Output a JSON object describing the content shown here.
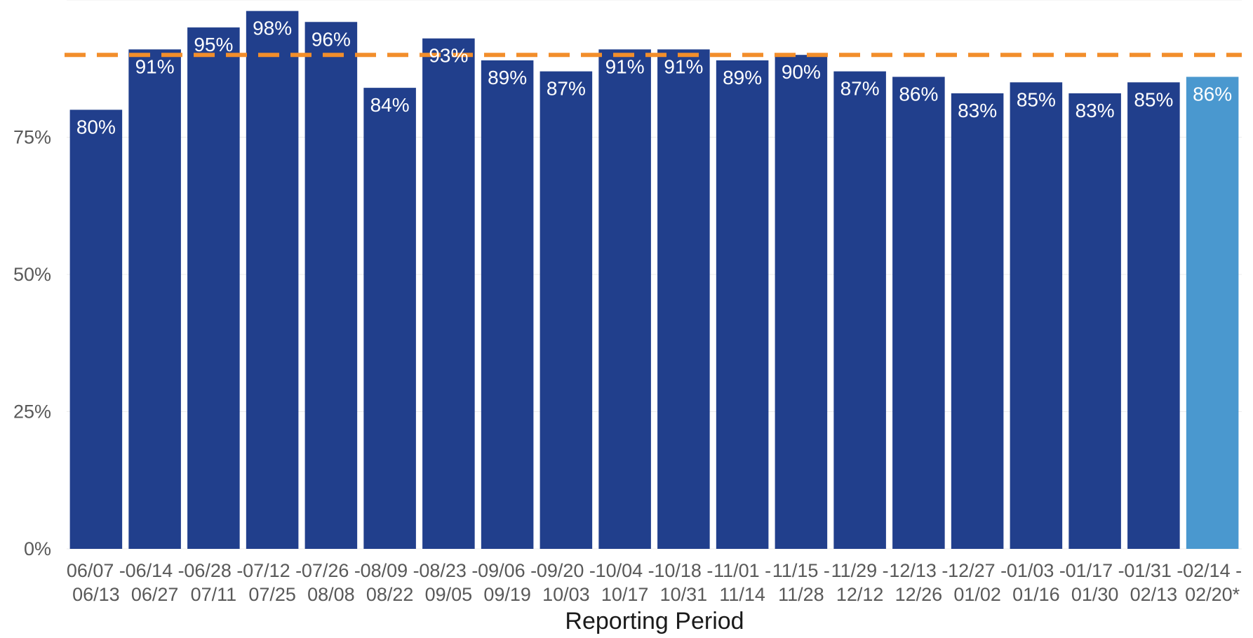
{
  "chart_data": {
    "type": "bar",
    "title": "",
    "xlabel": "Reporting Period",
    "ylabel": "",
    "ylim": [
      0,
      100
    ],
    "yticks": [
      0,
      25,
      50,
      75
    ],
    "ytick_labels": [
      "0%",
      "25%",
      "50%",
      "75%"
    ],
    "grid": true,
    "categories": [
      [
        "06/07 -",
        "06/13"
      ],
      [
        "06/14 -",
        "06/27"
      ],
      [
        "06/28 -",
        "07/11"
      ],
      [
        "07/12 -",
        "07/25"
      ],
      [
        "07/26 -",
        "08/08"
      ],
      [
        "08/09 -",
        "08/22"
      ],
      [
        "08/23 -",
        "09/05"
      ],
      [
        "09/06 -",
        "09/19"
      ],
      [
        "09/20 -",
        "10/03"
      ],
      [
        "10/04 -",
        "10/17"
      ],
      [
        "10/18 -",
        "10/31"
      ],
      [
        "11/01 -",
        "11/14"
      ],
      [
        "11/15 -",
        "11/28"
      ],
      [
        "11/29 -",
        "12/12"
      ],
      [
        "12/13 -",
        "12/26"
      ],
      [
        "12/27 -",
        "01/02"
      ],
      [
        "01/03 -",
        "01/16"
      ],
      [
        "01/17 -",
        "01/30"
      ],
      [
        "01/31 -",
        "02/13"
      ],
      [
        "02/14 -",
        "02/20*"
      ]
    ],
    "values": [
      80,
      91,
      95,
      98,
      96,
      84,
      93,
      89,
      87,
      91,
      91,
      89,
      90,
      87,
      86,
      83,
      85,
      83,
      85,
      86
    ],
    "data_labels": [
      "80%",
      "91%",
      "95%",
      "98%",
      "96%",
      "84%",
      "93%",
      "89%",
      "87%",
      "91%",
      "91%",
      "89%",
      "90%",
      "87%",
      "86%",
      "83%",
      "85%",
      "83%",
      "85%",
      "86%"
    ],
    "bar_colors": [
      "#213f8c",
      "#213f8c",
      "#213f8c",
      "#213f8c",
      "#213f8c",
      "#213f8c",
      "#213f8c",
      "#213f8c",
      "#213f8c",
      "#213f8c",
      "#213f8c",
      "#213f8c",
      "#213f8c",
      "#213f8c",
      "#213f8c",
      "#213f8c",
      "#213f8c",
      "#213f8c",
      "#213f8c",
      "#4a98cf"
    ],
    "reference_line": {
      "value": 90,
      "color": "#f28e2b",
      "style": "dashed"
    },
    "colors": {
      "bar": "#213f8c",
      "highlight_bar": "#4a98cf",
      "reference": "#f28e2b",
      "grid": "#ececec"
    }
  }
}
